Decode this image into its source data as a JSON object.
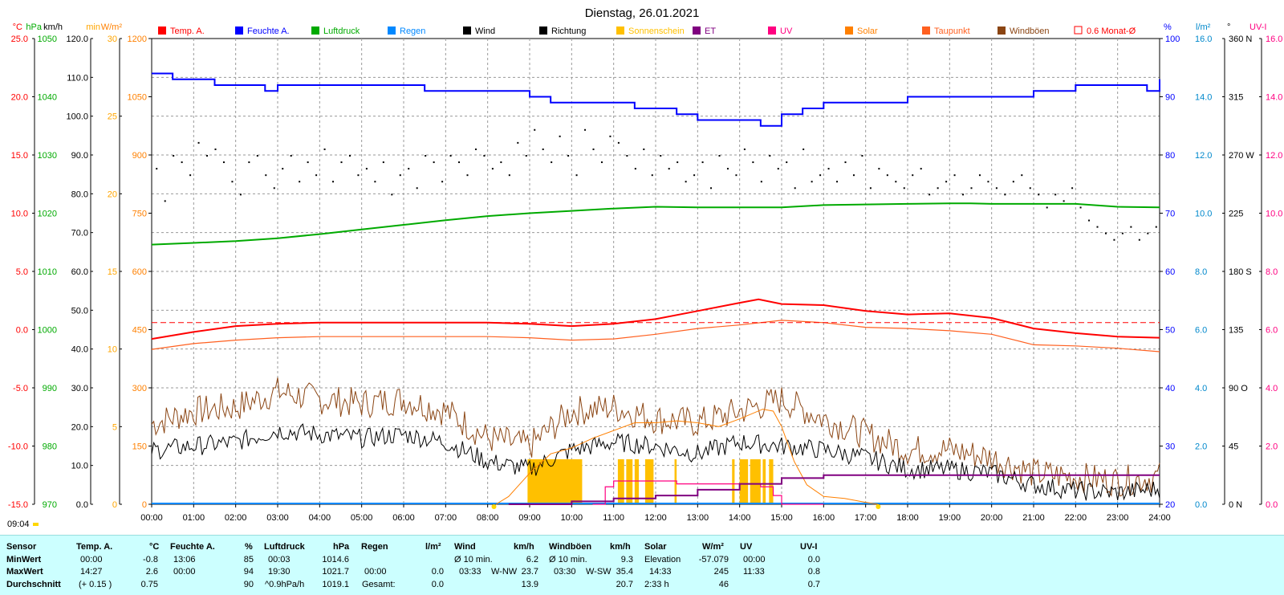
{
  "title": "Dienstag, 26.01.2021",
  "colors": {
    "temp": "#ff0000",
    "humidity": "#0000ff",
    "pressure": "#00aa00",
    "rain": "#0088ff",
    "wind": "#000000",
    "gust": "#8b4513",
    "sunshine": "#ffc000",
    "et": "#800080",
    "uv": "#ff0080",
    "solar": "#ff8000",
    "dewpoint": "#ff6020",
    "status_bg": "#ccffff"
  },
  "legend": [
    {
      "label": "Temp. A.",
      "color": "#ff0000",
      "kind": "box"
    },
    {
      "label": "Feuchte A.",
      "color": "#0000ff",
      "kind": "box"
    },
    {
      "label": "Luftdruck",
      "color": "#00aa00",
      "kind": "box"
    },
    {
      "label": "Regen",
      "color": "#0088ff",
      "kind": "box"
    },
    {
      "label": "Wind",
      "color": "#000000",
      "kind": "box"
    },
    {
      "label": "Richtung",
      "color": "#000000",
      "kind": "box"
    },
    {
      "label": "Sonnenschein",
      "color": "#ffc000",
      "kind": "box"
    },
    {
      "label": "ET",
      "color": "#800080",
      "kind": "box"
    },
    {
      "label": "UV",
      "color": "#ff0080",
      "kind": "box"
    },
    {
      "label": "Solar",
      "color": "#ff8000",
      "kind": "box"
    },
    {
      "label": "Taupunkt",
      "color": "#ff6020",
      "kind": "box"
    },
    {
      "label": "Windböen",
      "color": "#8b4513",
      "kind": "box"
    },
    {
      "label": "0.6 Monat-Ø",
      "color": "#ff0000",
      "kind": "outline"
    }
  ],
  "axes": {
    "temp": {
      "unit": "°C",
      "color": "#ff0000",
      "ticks": [
        "25.0",
        "20.0",
        "15.0",
        "10.0",
        "5.0",
        "0.0",
        "-5.0",
        "-10.0",
        "-15.0"
      ]
    },
    "pressure": {
      "unit": "hPa",
      "color": "#00aa00",
      "ticks": [
        "1050",
        "1040",
        "1030",
        "1020",
        "1010",
        "1000",
        "990",
        "980",
        "970"
      ]
    },
    "wind": {
      "unit": "km/h",
      "color": "#000000",
      "ticks": [
        "120.0",
        "110.0",
        "100.0",
        "90.0",
        "80.0",
        "70.0",
        "60.0",
        "50.0",
        "40.0",
        "30.0",
        "20.0",
        "10.0",
        "0.0"
      ]
    },
    "sun_minutes": {
      "unit": "min",
      "color": "#ffa500",
      "ticks": [
        "30",
        "25",
        "20",
        "15",
        "10",
        "5",
        "0"
      ]
    },
    "solar": {
      "unit": "W/m²",
      "color": "#ff8000",
      "ticks": [
        "1200",
        "1050",
        "900",
        "750",
        "600",
        "450",
        "300",
        "150",
        "0"
      ]
    },
    "humidity": {
      "unit": "%",
      "color": "#0000ff",
      "ticks": [
        "100",
        "90",
        "80",
        "70",
        "60",
        "50",
        "40",
        "30",
        "20"
      ]
    },
    "rain": {
      "unit": "l/m²",
      "color": "#0088cc",
      "ticks": [
        "16.0",
        "14.0",
        "12.0",
        "10.0",
        "8.0",
        "6.0",
        "4.0",
        "2.0",
        "0.0"
      ]
    },
    "direction": {
      "unit": "°",
      "color": "#000000",
      "ticks": [
        "360 N",
        "315",
        "270 W",
        "225",
        "180 S",
        "135",
        "90 O",
        "45",
        "0 N"
      ]
    },
    "uv": {
      "unit": "UV-I",
      "color": "#ff0080",
      "ticks": [
        "16.0",
        "14.0",
        "12.0",
        "10.0",
        "8.0",
        "6.0",
        "4.0",
        "2.0",
        "0.0"
      ]
    }
  },
  "time_ticks": [
    "00:00",
    "01:00",
    "02:00",
    "03:00",
    "04:00",
    "05:00",
    "06:00",
    "07:00",
    "08:00",
    "09:00",
    "10:00",
    "11:00",
    "12:00",
    "13:00",
    "14:00",
    "15:00",
    "16:00",
    "17:00",
    "18:00",
    "19:00",
    "20:00",
    "21:00",
    "22:00",
    "23:00",
    "24:00"
  ],
  "sunrise_label": "09:04",
  "chart_data": {
    "type": "line",
    "title": "Dienstag, 26.01.2021",
    "x_range_hours": [
      0,
      24
    ],
    "series": [
      {
        "name": "Temp. A.",
        "unit": "°C",
        "x": [
          0,
          1,
          2,
          3,
          4,
          5,
          6,
          7,
          8,
          9,
          10,
          11,
          12,
          13,
          14,
          14.45,
          15,
          16,
          17,
          18,
          19,
          20,
          21,
          22,
          23,
          24
        ],
        "y": [
          -0.8,
          -0.2,
          0.3,
          0.5,
          0.6,
          0.6,
          0.6,
          0.6,
          0.6,
          0.5,
          0.3,
          0.5,
          0.9,
          1.6,
          2.3,
          2.6,
          2.2,
          2.1,
          1.6,
          1.3,
          1.4,
          1.0,
          0.1,
          -0.3,
          -0.6,
          -0.7
        ]
      },
      {
        "name": "Feuchte A.",
        "unit": "%",
        "x": [
          0,
          0.5,
          1,
          1.5,
          2,
          2.7,
          3,
          4,
          5,
          6,
          6.5,
          7,
          8,
          9,
          9.5,
          10,
          11,
          11.5,
          12,
          12.5,
          13,
          13.5,
          14,
          14.5,
          15,
          15.5,
          16,
          17,
          18,
          19,
          20,
          21,
          22,
          23,
          23.7,
          24
        ],
        "y": [
          94,
          93,
          93,
          92,
          92,
          91,
          92,
          92,
          92,
          92,
          91,
          91,
          91,
          90,
          89,
          89,
          89,
          88,
          88,
          87,
          86,
          86,
          86,
          85,
          87,
          88,
          89,
          89,
          90,
          90,
          90,
          91,
          92,
          92,
          91,
          93
        ]
      },
      {
        "name": "Luftdruck",
        "unit": "hPa",
        "x": [
          0,
          1,
          2,
          3,
          4,
          5,
          6,
          7,
          8,
          9,
          10,
          11,
          12,
          13,
          14,
          15,
          16,
          17,
          18,
          19,
          19.5,
          20,
          21,
          22,
          23,
          24
        ],
        "y": [
          1014.6,
          1014.9,
          1015.2,
          1015.7,
          1016.4,
          1017.2,
          1018.0,
          1018.8,
          1019.5,
          1020.0,
          1020.4,
          1020.8,
          1021.1,
          1021.0,
          1021.0,
          1021.0,
          1021.4,
          1021.5,
          1021.6,
          1021.7,
          1021.7,
          1021.6,
          1021.6,
          1021.6,
          1021.1,
          1021.0
        ]
      },
      {
        "name": "Taupunkt",
        "unit": "°C",
        "x": [
          0,
          1,
          2,
          3,
          4,
          5,
          6,
          7,
          8,
          9,
          10,
          11,
          12,
          13,
          14,
          15,
          16,
          17,
          18,
          19,
          20,
          21,
          22,
          23,
          24
        ],
        "y": [
          -1.7,
          -1.2,
          -0.9,
          -0.7,
          -0.6,
          -0.6,
          -0.6,
          -0.6,
          -0.6,
          -0.7,
          -0.9,
          -0.8,
          -0.4,
          0.1,
          0.4,
          0.8,
          0.6,
          0.2,
          0.1,
          -0.1,
          -0.4,
          -1.3,
          -1.4,
          -1.6,
          -1.9
        ]
      },
      {
        "name": "Wind",
        "unit": "km/h",
        "x": [
          0,
          1,
          2,
          3,
          4,
          5,
          6,
          7,
          8,
          9,
          10,
          11,
          12,
          13,
          14,
          15,
          16,
          17,
          18,
          19,
          20,
          21,
          22,
          23,
          24
        ],
        "y": [
          13.9,
          15.0,
          16.0,
          19.0,
          18.0,
          17.0,
          18.0,
          16.0,
          11.0,
          9.0,
          14.0,
          16.0,
          15.0,
          13.0,
          16.0,
          15.0,
          14.0,
          12.0,
          9.0,
          9.0,
          8.0,
          5.0,
          3.5,
          3.0,
          4.0
        ]
      },
      {
        "name": "Windböen",
        "unit": "km/h",
        "x": [
          0,
          1,
          2,
          3,
          4,
          5,
          6,
          7,
          8,
          9,
          10,
          11,
          12,
          13,
          14,
          15,
          16,
          17,
          18,
          19,
          20,
          21,
          22,
          23,
          24
        ],
        "y": [
          20.7,
          24.0,
          25.0,
          29.0,
          27.0,
          26.0,
          27.0,
          24.0,
          17.0,
          15.0,
          24.0,
          25.0,
          22.0,
          21.0,
          24.0,
          27.0,
          22.0,
          18.0,
          14.0,
          14.0,
          12.0,
          8.0,
          7.0,
          6.0,
          7.0
        ]
      },
      {
        "name": "Solar",
        "unit": "W/m²",
        "x": [
          8.2,
          8.5,
          9.0,
          9.5,
          10.0,
          10.5,
          11.0,
          11.5,
          12.0,
          12.5,
          13.0,
          13.5,
          14.0,
          14.55,
          14.8,
          15.0,
          15.3,
          15.6,
          16.0,
          16.5,
          17.0,
          17.3
        ],
        "y": [
          0,
          20,
          80,
          130,
          145,
          170,
          190,
          210,
          210,
          215,
          210,
          200,
          220,
          245,
          240,
          200,
          110,
          50,
          20,
          15,
          5,
          0
        ]
      },
      {
        "name": "UV",
        "unit": "UV-I",
        "x": [
          10.5,
          10.8,
          11.0,
          11.5,
          12.0,
          12.5,
          13.0,
          13.5,
          14.0,
          14.5,
          14.8,
          15.0,
          16.0
        ],
        "y": [
          0,
          0.6,
          0.8,
          0.8,
          0.8,
          0.7,
          0.7,
          0.7,
          0.7,
          0.6,
          0.3,
          0.0,
          0.0
        ]
      },
      {
        "name": "ET",
        "unit": "l/m²",
        "x": [
          8.5,
          10.0,
          11.0,
          12.0,
          13.0,
          14.0,
          15.0,
          16.0,
          17.0,
          18.0,
          19.0,
          20.0,
          21.0,
          22.0,
          23.0,
          24.0
        ],
        "y": [
          0,
          0.1,
          0.2,
          0.3,
          0.5,
          0.7,
          0.9,
          1.0,
          1.0,
          1.0,
          1.0,
          1.0,
          1.0,
          1.0,
          1.0,
          1.0
        ]
      },
      {
        "name": "Sonnenschein",
        "unit": "min",
        "intervals": [
          [
            8.95,
            10.25
          ],
          [
            11.1,
            11.25
          ],
          [
            11.3,
            11.45
          ],
          [
            11.5,
            11.6
          ],
          [
            11.75,
            11.95
          ],
          [
            12.45,
            12.5
          ],
          [
            13.82,
            13.88
          ],
          [
            14.0,
            14.2
          ],
          [
            14.25,
            14.5
          ],
          [
            14.55,
            14.62
          ],
          [
            14.7,
            14.8
          ]
        ]
      },
      {
        "name": "Richtung",
        "unit": "°",
        "type": "scatter",
        "x": [
          0.1,
          0.3,
          0.5,
          0.7,
          0.9,
          1.1,
          1.3,
          1.5,
          1.7,
          1.9,
          2.1,
          2.3,
          2.5,
          2.7,
          2.9,
          3.1,
          3.3,
          3.5,
          3.7,
          3.9,
          4.1,
          4.3,
          4.5,
          4.7,
          4.9,
          5.1,
          5.3,
          5.5,
          5.7,
          5.9,
          6.1,
          6.3,
          6.5,
          6.7,
          6.9,
          7.1,
          7.3,
          7.5,
          7.7,
          7.9,
          8.1,
          8.3,
          8.5,
          8.7,
          8.9,
          9.1,
          9.3,
          9.5,
          9.7,
          9.9,
          10.1,
          10.3,
          10.5,
          10.7,
          10.9,
          11.1,
          11.3,
          11.5,
          11.7,
          11.9,
          12.1,
          12.3,
          12.5,
          12.7,
          12.9,
          13.1,
          13.3,
          13.5,
          13.7,
          13.9,
          14.1,
          14.3,
          14.5,
          14.7,
          14.9,
          15.1,
          15.3,
          15.5,
          15.7,
          15.9,
          16.1,
          16.3,
          16.5,
          16.7,
          16.9,
          17.1,
          17.3,
          17.5,
          17.7,
          17.9,
          18.1,
          18.3,
          18.5,
          18.7,
          18.9,
          19.1,
          19.3,
          19.5,
          19.7,
          19.9,
          20.1,
          20.3,
          20.5,
          20.7,
          20.9,
          21.1,
          21.3,
          21.5,
          21.7,
          21.9,
          22.1,
          22.3,
          22.5,
          22.7,
          22.9,
          23.1,
          23.3,
          23.5,
          23.7,
          23.9
        ],
        "y": [
          260,
          235,
          270,
          265,
          255,
          280,
          270,
          275,
          265,
          250,
          240,
          265,
          270,
          255,
          245,
          260,
          270,
          250,
          265,
          255,
          275,
          250,
          265,
          270,
          255,
          260,
          250,
          265,
          240,
          255,
          260,
          245,
          270,
          265,
          250,
          270,
          265,
          255,
          275,
          270,
          260,
          265,
          255,
          280,
          270,
          290,
          275,
          265,
          285,
          270,
          255,
          290,
          275,
          265,
          285,
          280,
          270,
          260,
          275,
          255,
          270,
          260,
          265,
          250,
          255,
          265,
          245,
          270,
          260,
          255,
          275,
          265,
          250,
          270,
          260,
          265,
          245,
          275,
          250,
          255,
          260,
          250,
          265,
          255,
          270,
          245,
          260,
          255,
          250,
          245,
          255,
          260,
          240,
          245,
          250,
          255,
          240,
          245,
          255,
          250,
          245,
          240,
          250,
          255,
          245,
          240,
          230,
          240,
          235,
          245,
          230,
          220,
          215,
          210,
          205,
          210,
          215,
          205,
          210,
          215
        ]
      }
    ],
    "reference_lines": [
      {
        "name": "0.6 Monat-Ø",
        "unit": "°C",
        "value": 0.6
      }
    ]
  },
  "status": {
    "row_labels": [
      "Sensor",
      "MinWert",
      "MaxWert",
      "Durchschnitt"
    ],
    "temp": {
      "header": "Temp. A.",
      "unit": "°C",
      "min_time": "00:00",
      "min": "-0.8",
      "max_time": "14:27",
      "max": "2.6",
      "avg_note": "(+ 0.15 )",
      "avg": "0.75"
    },
    "humidity": {
      "header": "Feuchte A.",
      "unit": "%",
      "min_time": "13:06",
      "min": "85",
      "max_time": "00:00",
      "max": "94",
      "avg": "90"
    },
    "pressure": {
      "header": "Luftdruck",
      "unit": "hPa",
      "min_time": "00:03",
      "min": "1014.6",
      "max_time": "19:30",
      "max": "1021.7",
      "avg_note": "^0.9hPa/h",
      "avg": "1019.1"
    },
    "rain": {
      "header": "Regen",
      "unit": "l/m²",
      "max_time": "00:00",
      "max": "0.0",
      "avg_note": "Gesamt:",
      "avg": "0.0"
    },
    "wind": {
      "header": "Wind",
      "unit": "km/h",
      "min_label": "Ø 10 min.",
      "min": "6.2",
      "max_time": "03:33",
      "max_dir": "W-NW",
      "max": "23.7",
      "avg": "13.9"
    },
    "gust": {
      "header": "Windböen",
      "unit": "km/h",
      "min_label": "Ø 10 min.",
      "min": "9.3",
      "max_time": "03:30",
      "max_dir": "W-SW",
      "max": "35.4",
      "avg": "20.7"
    },
    "solar": {
      "header": "Solar",
      "unit": "W/m²",
      "min_label": "Elevation",
      "min": "-57.079",
      "max_time": "14:33",
      "max": "245",
      "avg_note": "2:33 h",
      "avg": "46"
    },
    "uv": {
      "header": "UV",
      "unit": "UV-I",
      "min_time": "00:00",
      "min": "0.0",
      "max_time": "11:33",
      "max": "0.8",
      "avg": "0.7"
    }
  }
}
